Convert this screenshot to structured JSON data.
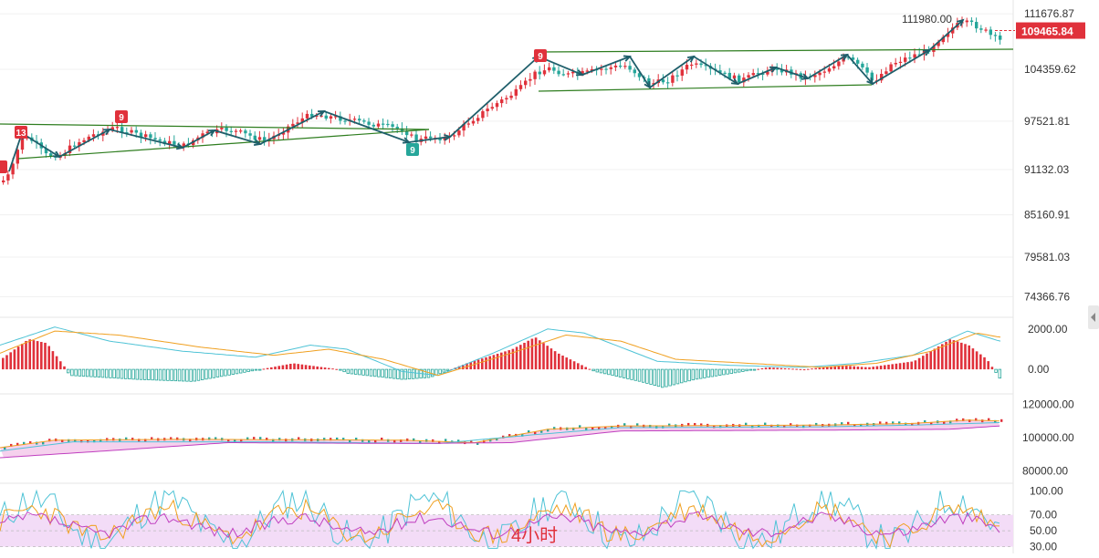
{
  "chart_data": [
    {
      "type": "candlestick",
      "title": "",
      "panel": "price",
      "y_axis_ticks": [
        "111676.87",
        "104359.62",
        "97521.81",
        "91132.03",
        "85160.91",
        "79581.03",
        "74366.76"
      ],
      "ylim": [
        72000,
        113500
      ],
      "high_annotation": "111980.00",
      "current_price_label": "109465.84",
      "current_price": 109465.84,
      "period_label": "4小时",
      "badges": [
        {
          "text": "13",
          "color": "#e0313b"
        },
        {
          "text": "9",
          "color": "#e0313b"
        },
        {
          "text": "9",
          "color": "#26a69a"
        },
        {
          "text": "9",
          "color": "#e0313b"
        }
      ],
      "colors": {
        "up": "#e0313b",
        "down": "#26a69a",
        "trend_line": "#2e7d1f",
        "arrow": "#1f5f6b"
      }
    },
    {
      "type": "bar+line",
      "panel": "macd",
      "y_axis_ticks": [
        "2000.00",
        "0.00"
      ],
      "ylim": [
        -900,
        2400
      ],
      "colors": {
        "dif": "#4fc3d6",
        "dea": "#f0a020",
        "hist_up": "#e0313b",
        "hist_down": "#26a69a"
      }
    },
    {
      "type": "line",
      "panel": "moving-average",
      "y_axis_ticks": [
        "120000.00",
        "100000.00",
        "80000.00"
      ],
      "ylim": [
        76000,
        124000
      ],
      "colors": {
        "ma_fast": "#f0a020",
        "ma_mid": "#4fc3d6",
        "ma_slow": "#c040c0",
        "band_fill": "#f2c6e8"
      }
    },
    {
      "type": "line",
      "panel": "oscillator",
      "y_axis_ticks": [
        "100.00",
        "70.00",
        "50.00",
        "30.00"
      ],
      "ylim": [
        25,
        105
      ],
      "colors": {
        "k": "#4fc3d6",
        "d": "#f0a020",
        "j": "#c040c0",
        "band_fill": "#f3dcf7"
      }
    }
  ]
}
